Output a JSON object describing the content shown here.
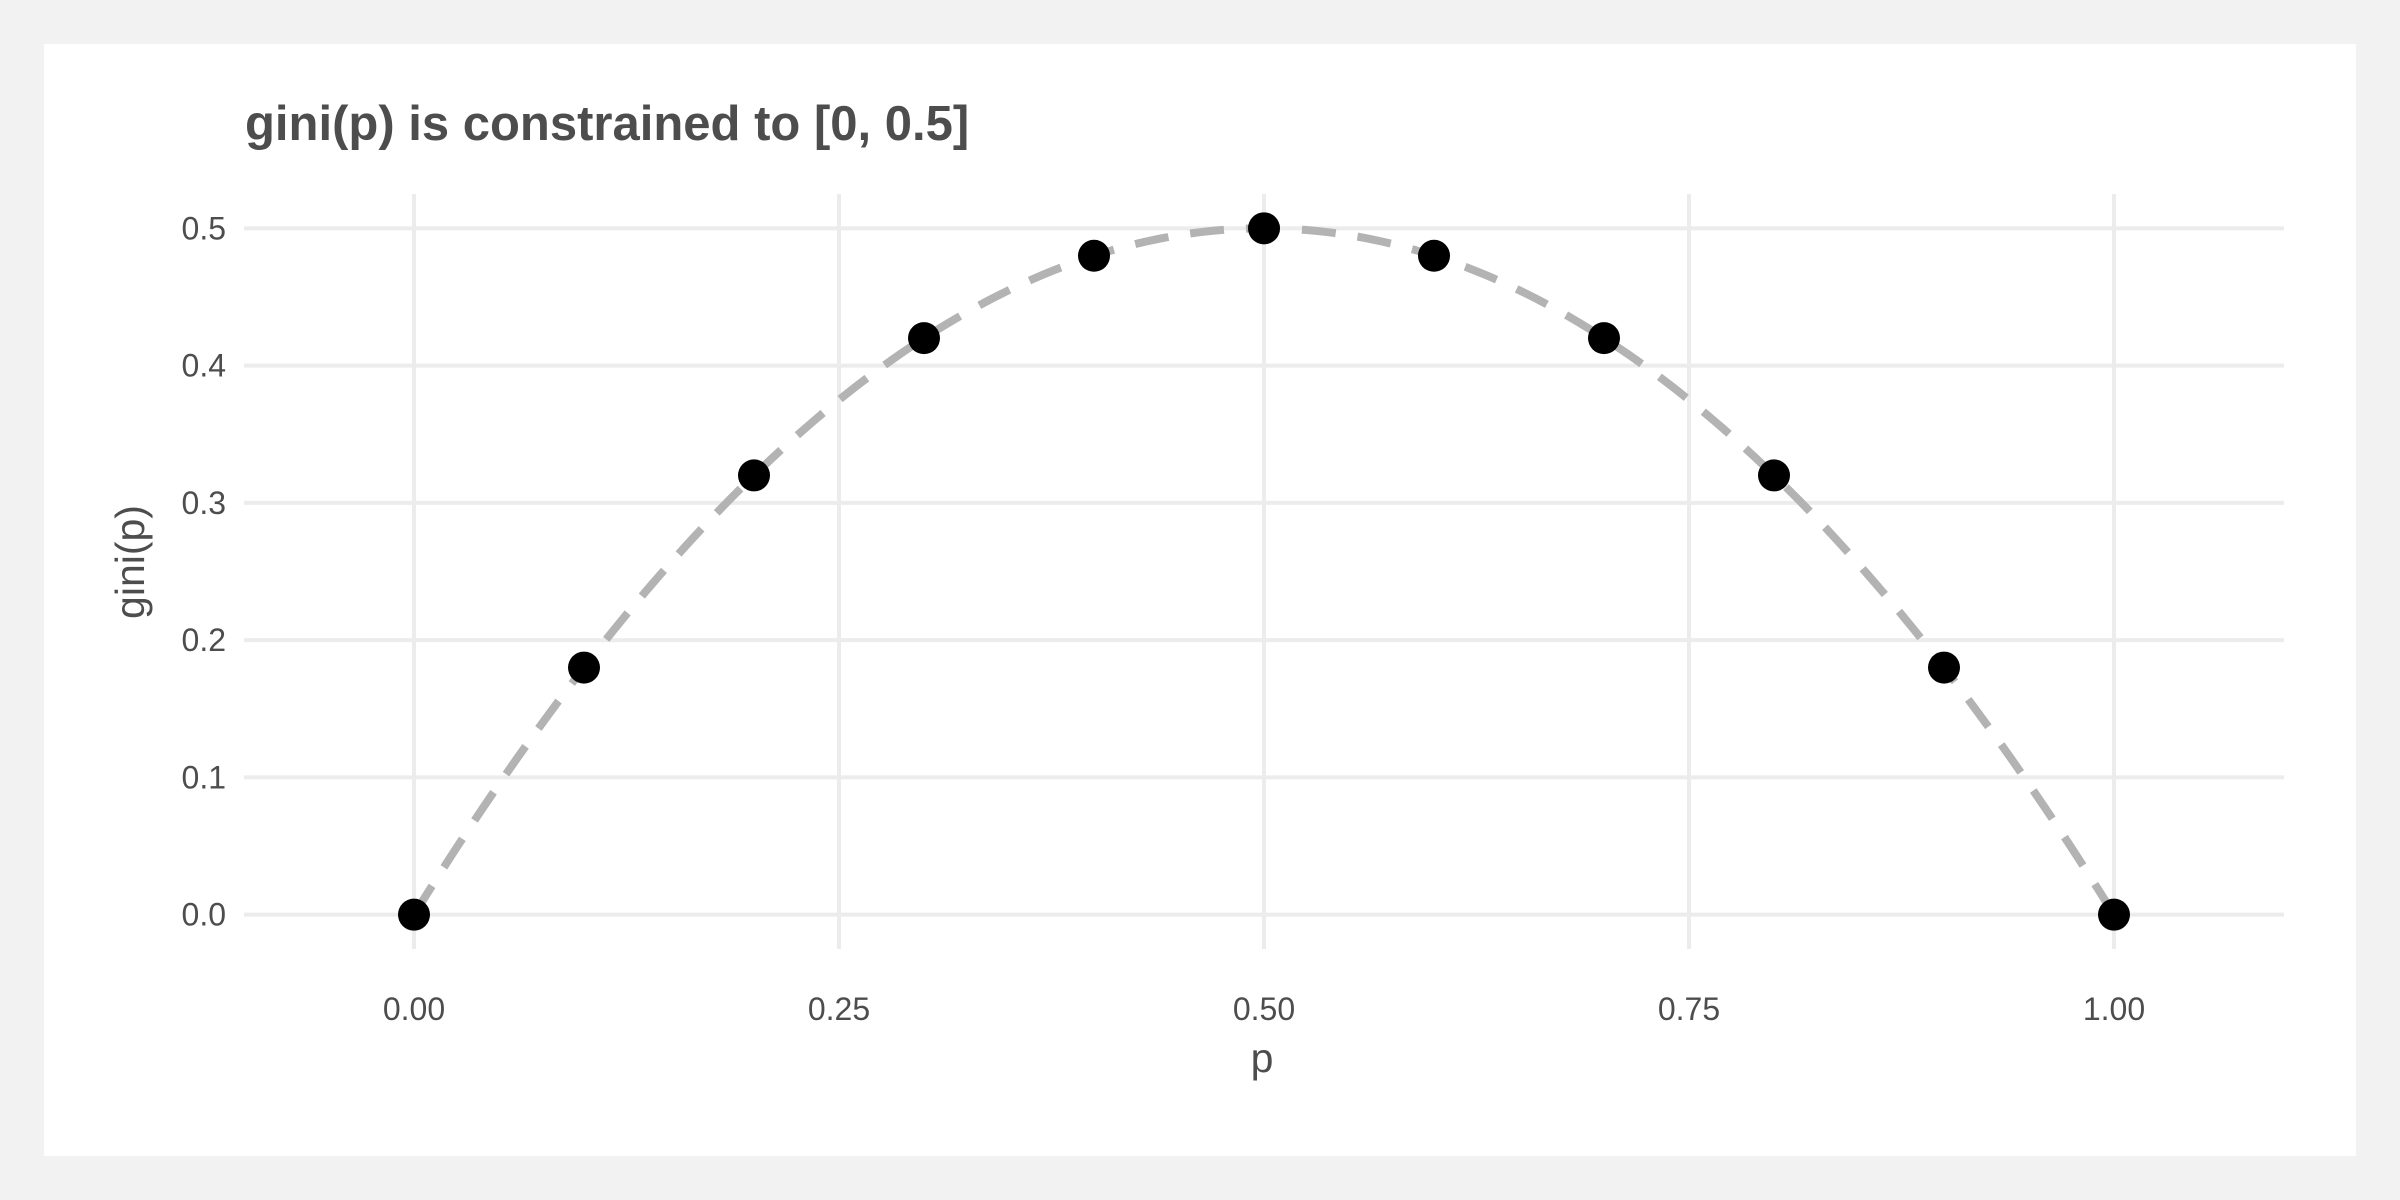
{
  "chart_data": {
    "type": "scatter",
    "title": "gini(p) is constrained to [0, 0.5]",
    "xlabel": "p",
    "ylabel": "gini(p)",
    "xlim": [
      -0.1,
      1.1
    ],
    "ylim": [
      -0.025,
      0.525
    ],
    "x_ticks": [
      0,
      0.25,
      0.5,
      0.75,
      1
    ],
    "x_tick_labels": [
      "0.00",
      "0.25",
      "0.50",
      "0.75",
      "1.00"
    ],
    "y_ticks": [
      0,
      0.1,
      0.2,
      0.3,
      0.4,
      0.5
    ],
    "y_tick_labels": [
      "0.0",
      "0.1",
      "0.2",
      "0.3",
      "0.4",
      "0.5"
    ],
    "grid": true,
    "series": [
      {
        "type": "scatter",
        "x": [
          0,
          0.1,
          0.2,
          0.3,
          0.4,
          0.5,
          0.6,
          0.7,
          0.8,
          0.9,
          1.0
        ],
        "y": [
          0,
          0.18,
          0.32,
          0.42,
          0.48,
          0.5,
          0.48,
          0.42,
          0.32,
          0.18,
          0
        ],
        "color": "#000000"
      },
      {
        "type": "line",
        "style": "dashed",
        "function": "2p(1-p)",
        "color": "#b3b3b3"
      }
    ]
  }
}
